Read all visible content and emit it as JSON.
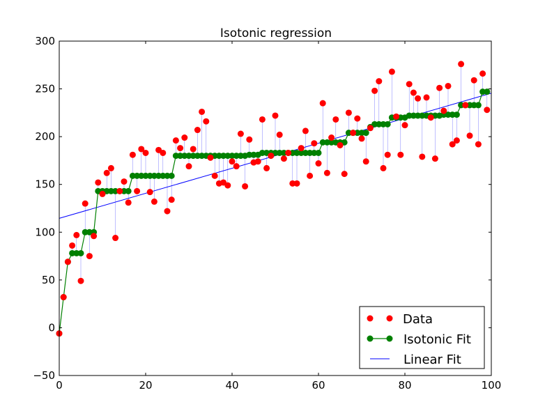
{
  "chart_data": {
    "type": "scatter",
    "title": "Isotonic regression",
    "xlabel": "",
    "ylabel": "",
    "xlim": [
      0,
      100
    ],
    "ylim": [
      -50,
      300
    ],
    "x_ticks": [
      0,
      20,
      40,
      60,
      80,
      100
    ],
    "y_ticks": [
      -50,
      0,
      50,
      100,
      150,
      200,
      250,
      300
    ],
    "grid": false,
    "legend_placement": "lower-right",
    "colors": {
      "data": "#ff0000",
      "isotonic": "#008000",
      "linear": "#0000ff",
      "residual": "#0000ff"
    },
    "series": [
      {
        "name": "Data",
        "style": "red-dots",
        "x": [
          0,
          1,
          2,
          3,
          4,
          5,
          6,
          7,
          8,
          9,
          10,
          11,
          12,
          13,
          14,
          15,
          16,
          17,
          18,
          19,
          20,
          21,
          22,
          23,
          24,
          25,
          26,
          27,
          28,
          29,
          30,
          31,
          32,
          33,
          34,
          35,
          36,
          37,
          38,
          39,
          40,
          41,
          42,
          43,
          44,
          45,
          46,
          47,
          48,
          49,
          50,
          51,
          52,
          53,
          54,
          55,
          56,
          57,
          58,
          59,
          60,
          61,
          62,
          63,
          64,
          65,
          66,
          67,
          68,
          69,
          70,
          71,
          72,
          73,
          74,
          75,
          76,
          77,
          78,
          79,
          80,
          81,
          82,
          83,
          84,
          85,
          86,
          87,
          88,
          89,
          90,
          91,
          92,
          93,
          94,
          95,
          96,
          97,
          98,
          99
        ],
        "values": [
          -6,
          32,
          69,
          86,
          97,
          49,
          130,
          75,
          96,
          152,
          140,
          162,
          167,
          94,
          143,
          153,
          131,
          181,
          143,
          187,
          183,
          142,
          132,
          186,
          183,
          122,
          134,
          196,
          188,
          199,
          169,
          187,
          207,
          226,
          216,
          178,
          159,
          151,
          152,
          149,
          174,
          169,
          203,
          148,
          197,
          173,
          174,
          218,
          167,
          180,
          222,
          202,
          177,
          183,
          151,
          151,
          188,
          206,
          159,
          193,
          172,
          235,
          162,
          199,
          218,
          191,
          161,
          225,
          204,
          219,
          198,
          174,
          209,
          248,
          258,
          167,
          181,
          268,
          221,
          181,
          212,
          255,
          246,
          240,
          179,
          241,
          220,
          177,
          251,
          227,
          253,
          192,
          196,
          276,
          233,
          201,
          259,
          192,
          266,
          228
        ]
      },
      {
        "name": "Isotonic Fit",
        "style": "green-line-markers",
        "x": [
          0,
          1,
          2,
          3,
          4,
          5,
          6,
          7,
          8,
          9,
          10,
          11,
          12,
          13,
          14,
          15,
          16,
          17,
          18,
          19,
          20,
          21,
          22,
          23,
          24,
          25,
          26,
          27,
          28,
          29,
          30,
          31,
          32,
          33,
          34,
          35,
          36,
          37,
          38,
          39,
          40,
          41,
          42,
          43,
          44,
          45,
          46,
          47,
          48,
          49,
          50,
          51,
          52,
          53,
          54,
          55,
          56,
          57,
          58,
          59,
          60,
          61,
          62,
          63,
          64,
          65,
          66,
          67,
          68,
          69,
          70,
          71,
          72,
          73,
          74,
          75,
          76,
          77,
          78,
          79,
          80,
          81,
          82,
          83,
          84,
          85,
          86,
          87,
          88,
          89,
          90,
          91,
          92,
          93,
          94,
          95,
          96,
          97,
          98,
          99
        ],
        "values": [
          -6,
          32,
          69,
          78,
          78,
          78,
          100,
          100,
          100,
          143,
          143,
          143,
          143,
          143,
          143,
          143,
          143,
          159,
          159,
          159,
          159,
          159,
          159,
          159,
          159,
          159,
          159,
          180,
          180,
          180,
          180,
          180,
          180,
          180,
          180,
          180,
          180,
          180,
          180,
          180,
          180,
          180,
          180,
          180,
          181,
          181,
          181,
          183,
          183,
          183,
          183,
          183,
          183,
          183,
          183,
          183,
          183,
          183,
          183,
          183,
          183,
          194,
          194,
          194,
          194,
          194,
          194,
          204,
          204,
          204,
          204,
          204,
          210,
          213,
          213,
          213,
          213,
          220,
          220,
          220,
          220,
          222,
          222,
          222,
          222,
          222,
          222,
          222,
          222,
          223,
          223,
          223,
          223,
          233,
          233,
          233,
          233,
          233,
          247,
          247
        ]
      },
      {
        "name": "Linear Fit",
        "style": "blue-line",
        "x": [
          0,
          100
        ],
        "values": [
          114.5,
          245.5
        ]
      }
    ]
  },
  "legend": {
    "items": [
      {
        "label": "Data"
      },
      {
        "label": "Isotonic Fit"
      },
      {
        "label": "Linear Fit"
      }
    ]
  }
}
